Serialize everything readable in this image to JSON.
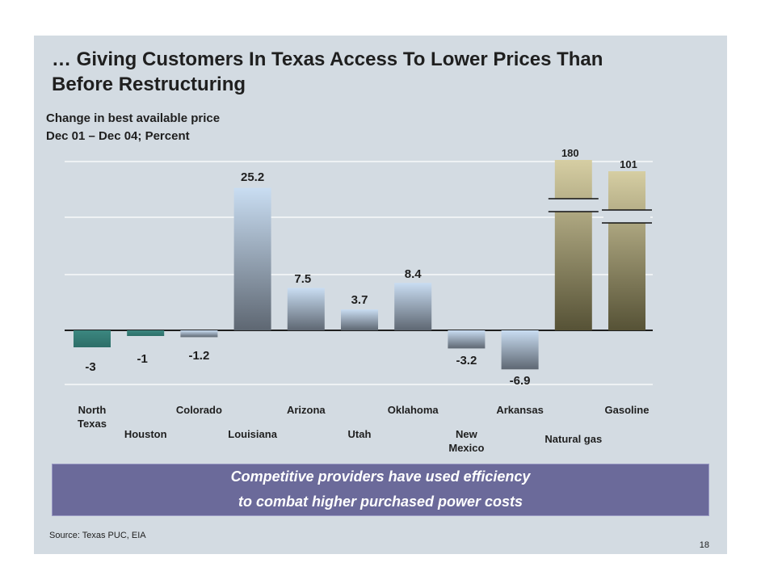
{
  "slide": {
    "title_line1": "… Giving Customers In Texas Access To Lower Prices Than",
    "title_line2": "Before Restructuring",
    "subtitle_line1": "Change in best available price",
    "subtitle_line2": "Dec 01 – Dec 04; Percent",
    "callout_line1": "Competitive providers have used efficiency",
    "callout_line2": "to combat higher purchased power costs",
    "source": "Source: Texas PUC, EIA",
    "page_number": "18"
  },
  "chart_data": {
    "type": "bar",
    "categories": [
      [
        "North",
        "Texas"
      ],
      [
        "Houston"
      ],
      [
        "Colorado"
      ],
      [
        "Louisiana"
      ],
      [
        "Arizona"
      ],
      [
        "Utah"
      ],
      [
        "Oklahoma"
      ],
      [
        "New",
        "Mexico"
      ],
      [
        "Arkansas"
      ],
      [
        "Natural gas"
      ],
      [
        "Gasoline"
      ]
    ],
    "values": [
      -3,
      -1,
      -1.2,
      25.2,
      7.5,
      3.7,
      8.4,
      -3.2,
      -6.9,
      180,
      101
    ],
    "value_labels": [
      "-3",
      "-1",
      "-1.2",
      "25.2",
      "7.5",
      "3.7",
      "8.4",
      "-3.2",
      "-6.9",
      "180",
      "101"
    ],
    "axis_breaks": [
      "Natural gas",
      "Gasoline"
    ],
    "grid": true,
    "colors": {
      "negative_texas": "#3c8780",
      "blue_top": "#c9ddf2",
      "blue_bottom": "#5e6772",
      "olive_top": "#d6cea3",
      "olive_bottom": "#565236"
    }
  }
}
